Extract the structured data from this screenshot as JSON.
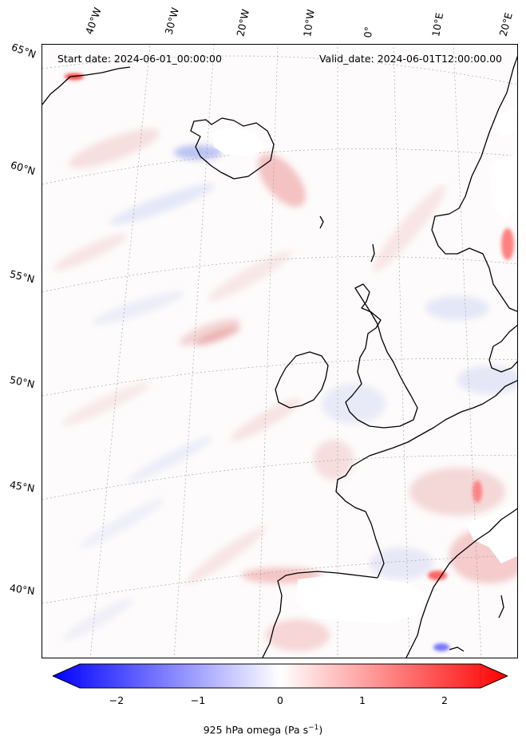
{
  "header": {
    "start_date": "Start date: 2024-06-01_00:00:00",
    "valid_date": "Valid_date: 2024-06-01T12:00:00.00"
  },
  "axes": {
    "lon_labels": [
      "40°W",
      "30°W",
      "20°W",
      "10°W",
      "0°",
      "10°E",
      "20°E"
    ],
    "lat_labels": [
      "65°N",
      "60°N",
      "55°N",
      "50°N",
      "45°N",
      "40°N"
    ]
  },
  "colorbar": {
    "label": "925 hPa omega (Pa s",
    "label_exp": "−1",
    "label_close": ")",
    "ticks": [
      "−2",
      "−1",
      "0",
      "1",
      "2"
    ],
    "range": [
      -2.6,
      2.6
    ],
    "cmap": "bwr",
    "colors": {
      "min": "#0000ff",
      "mid": "#ffffff",
      "max": "#ff0000"
    }
  }
}
